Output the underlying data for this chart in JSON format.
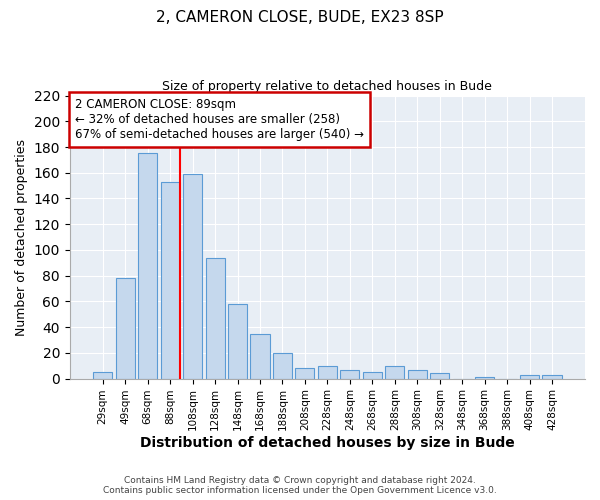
{
  "title1": "2, CAMERON CLOSE, BUDE, EX23 8SP",
  "title2": "Size of property relative to detached houses in Bude",
  "xlabel": "Distribution of detached houses by size in Bude",
  "ylabel": "Number of detached properties",
  "bin_labels": [
    "29sqm",
    "49sqm",
    "68sqm",
    "88sqm",
    "108sqm",
    "128sqm",
    "148sqm",
    "168sqm",
    "188sqm",
    "208sqm",
    "228sqm",
    "248sqm",
    "268sqm",
    "288sqm",
    "308sqm",
    "328sqm",
    "348sqm",
    "368sqm",
    "388sqm",
    "408sqm",
    "428sqm"
  ],
  "bar_values": [
    5,
    78,
    175,
    153,
    159,
    94,
    58,
    35,
    20,
    8,
    10,
    7,
    5,
    10,
    7,
    4,
    0,
    1,
    0,
    3,
    3
  ],
  "bar_color": "#c5d8ed",
  "bar_edge_color": "#5b9bd5",
  "red_line_bin_index": 3,
  "annotation_title": "2 CAMERON CLOSE: 89sqm",
  "annotation_line1": "← 32% of detached houses are smaller (258)",
  "annotation_line2": "67% of semi-detached houses are larger (540) →",
  "annotation_box_color": "#ffffff",
  "annotation_border_color": "#cc0000",
  "ylim": [
    0,
    220
  ],
  "yticks": [
    0,
    20,
    40,
    60,
    80,
    100,
    120,
    140,
    160,
    180,
    200,
    220
  ],
  "footer1": "Contains HM Land Registry data © Crown copyright and database right 2024.",
  "footer2": "Contains public sector information licensed under the Open Government Licence v3.0.",
  "fig_bg_color": "#ffffff",
  "plot_bg_color": "#e8eef5",
  "grid_color": "#ffffff",
  "spine_color": "#aaaaaa"
}
